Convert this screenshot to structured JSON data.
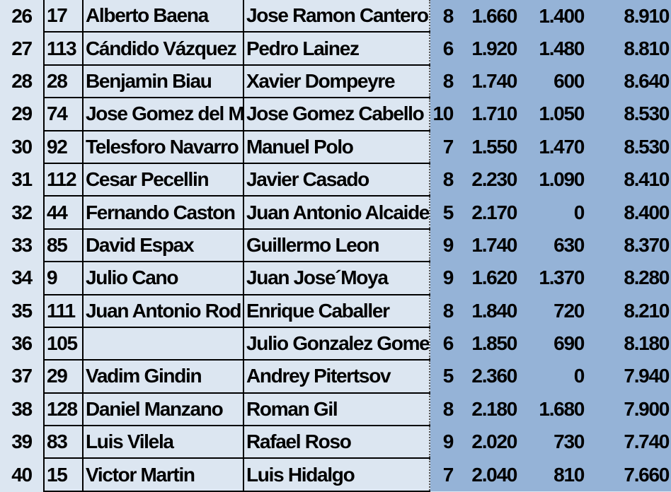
{
  "colors": {
    "light_cell": "#dce6f1",
    "highlight_cell": "#95b3d7"
  },
  "rows": [
    {
      "pos": "26",
      "id": "17",
      "name1": "Alberto Baena",
      "name2": "Jose Ramon Cantero",
      "a": "8",
      "b": "1.660",
      "c": "1.400",
      "d": "8.910"
    },
    {
      "pos": "27",
      "id": "113",
      "name1": "Cándido Vázquez",
      "name2": "Pedro Lainez",
      "a": "6",
      "b": "1.920",
      "c": "1.480",
      "d": "8.810"
    },
    {
      "pos": "28",
      "id": "28",
      "name1": "Benjamin Biau",
      "name2": "Xavier Dompeyre",
      "a": "8",
      "b": "1.740",
      "c": "600",
      "d": "8.640"
    },
    {
      "pos": "29",
      "id": "74",
      "name1": "Jose Gomez del M",
      "name2": "Jose Gomez Cabello",
      "a": "10",
      "b": "1.710",
      "c": "1.050",
      "d": "8.530"
    },
    {
      "pos": "30",
      "id": "92",
      "name1": "Telesforo Navarro",
      "name2": "Manuel Polo",
      "a": "7",
      "b": "1.550",
      "c": "1.470",
      "d": "8.530"
    },
    {
      "pos": "31",
      "id": "112",
      "name1": "Cesar Pecellin",
      "name2": "Javier Casado",
      "a": "8",
      "b": "2.230",
      "c": "1.090",
      "d": "8.410"
    },
    {
      "pos": "32",
      "id": "44",
      "name1": "Fernando Caston",
      "name2": "Juan Antonio Alcaide",
      "a": "5",
      "b": "2.170",
      "c": "0",
      "d": "8.400"
    },
    {
      "pos": "33",
      "id": "85",
      "name1": "David Espax",
      "name2": "Guillermo Leon",
      "a": "9",
      "b": "1.740",
      "c": "630",
      "d": "8.370"
    },
    {
      "pos": "34",
      "id": "9",
      "name1": "Julio Cano",
      "name2": "Juan Jose´Moya",
      "a": "9",
      "b": "1.620",
      "c": "1.370",
      "d": "8.280"
    },
    {
      "pos": "35",
      "id": "111",
      "name1": "Juan Antonio Rod",
      "name2": "Enrique Caballer",
      "a": "8",
      "b": "1.840",
      "c": "720",
      "d": "8.210"
    },
    {
      "pos": "36",
      "id": "105",
      "name1": "",
      "name2": "Julio Gonzalez Gome",
      "a": "6",
      "b": "1.850",
      "c": "690",
      "d": "8.180"
    },
    {
      "pos": "37",
      "id": "29",
      "name1": "Vadim Gindin",
      "name2": "Andrey Pitertsov",
      "a": "5",
      "b": "2.360",
      "c": "0",
      "d": "7.940"
    },
    {
      "pos": "38",
      "id": "128",
      "name1": "Daniel Manzano",
      "name2": "Roman Gil",
      "a": "8",
      "b": "2.180",
      "c": "1.680",
      "d": "7.900"
    },
    {
      "pos": "39",
      "id": "83",
      "name1": "Luis Vilela",
      "name2": "Rafael Roso",
      "a": "9",
      "b": "2.020",
      "c": "730",
      "d": "7.740"
    },
    {
      "pos": "40",
      "id": "15",
      "name1": "Victor Martin",
      "name2": "Luis Hidalgo",
      "a": "7",
      "b": "2.040",
      "c": "810",
      "d": "7.660"
    }
  ]
}
